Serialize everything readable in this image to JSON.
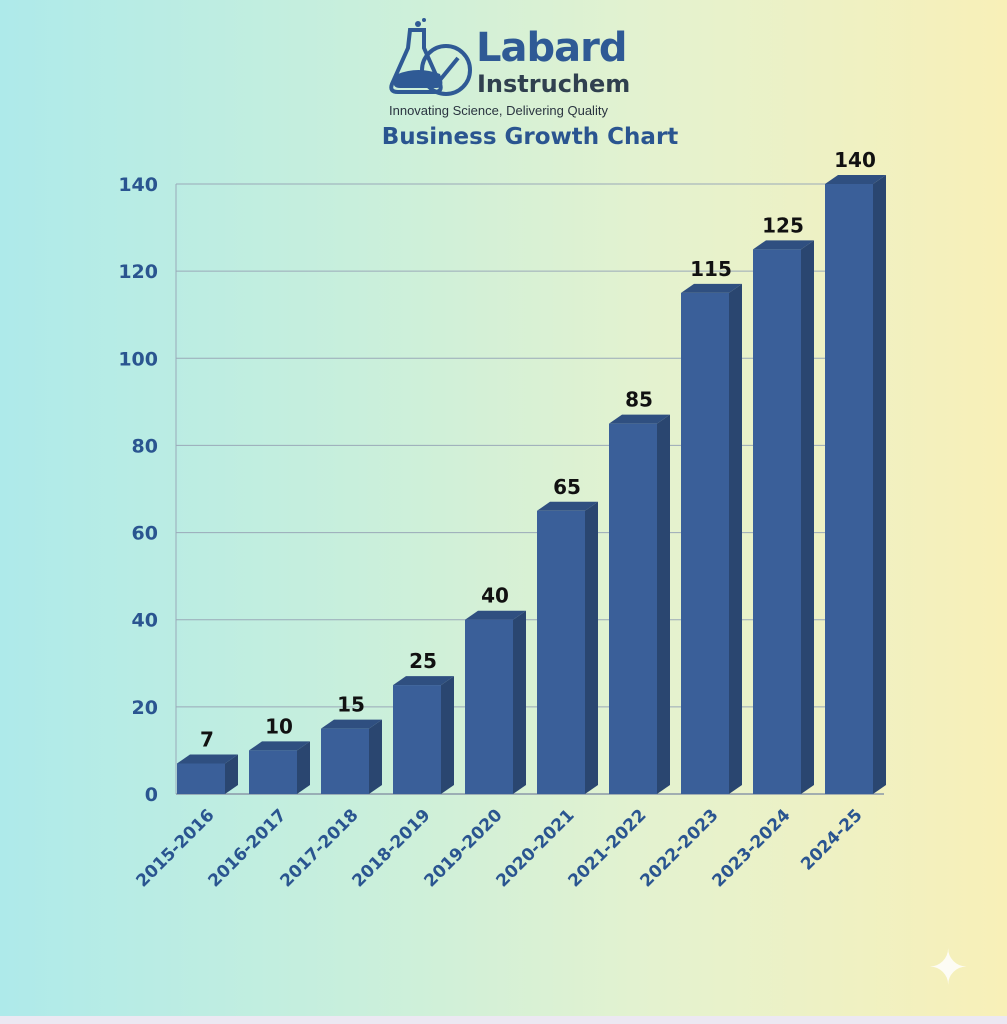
{
  "brand": {
    "name_line1": "Labard",
    "name_line2": "Instruchem",
    "tagline": "Innovating Science, Delivering Quality"
  },
  "chart_data": {
    "type": "bar",
    "title": "Business Growth Chart",
    "xlabel": "",
    "ylabel": "",
    "categories": [
      "2015-2016",
      "2016-2017",
      "2017-2018",
      "2018-2019",
      "2019-2020",
      "2020-2021",
      "2021-2022",
      "2022-2023",
      "2023-2024",
      "2024-25"
    ],
    "values": [
      7,
      10,
      15,
      25,
      40,
      65,
      85,
      115,
      125,
      140
    ],
    "ylim": [
      0,
      140
    ],
    "yticks": [
      0,
      20,
      40,
      60,
      80,
      100,
      120,
      140
    ],
    "grid": true,
    "bar_color": "#3a5f99",
    "bar_side_color": "#2a4670",
    "bar_top_color": "#2f4f80"
  }
}
